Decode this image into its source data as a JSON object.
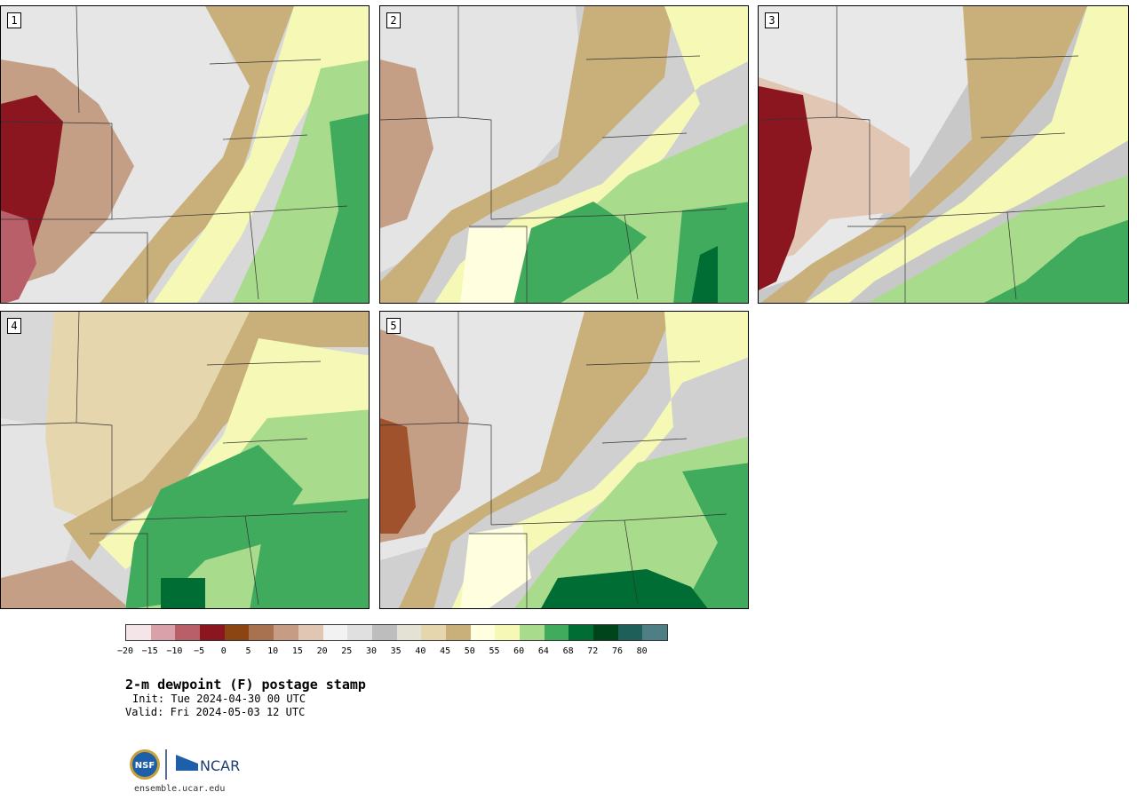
{
  "panels": [
    {
      "label": "1"
    },
    {
      "label": "2"
    },
    {
      "label": "3"
    },
    {
      "label": "4"
    },
    {
      "label": "5"
    }
  ],
  "colorbar": {
    "colors": [
      "#f4e6e8",
      "#d9a2ab",
      "#b85f6a",
      "#8b1620",
      "#8b4513",
      "#a87150",
      "#c79c84",
      "#e2c6b4",
      "#f2f2f2",
      "#e0e0e0",
      "#bdbdbd",
      "#e4e2d5",
      "#e6d6ae",
      "#c9b07a",
      "#ffffe0",
      "#f5f9b5",
      "#a8dc8c",
      "#41ab5d",
      "#006d35",
      "#00441b",
      "#1f5f5a",
      "#4f7f85"
    ],
    "ticks": [
      "−20",
      "−15",
      "−10",
      "−5",
      "0",
      "5",
      "10",
      "15",
      "20",
      "25",
      "30",
      "35",
      "40",
      "45",
      "50",
      "55",
      "60",
      "64",
      "68",
      "72",
      "76",
      "80"
    ]
  },
  "title": "2-m dewpoint (F) postage stamp",
  "init": "Init: Tue 2024-04-30 00 UTC",
  "valid": "Valid: Fri 2024-05-03 12 UTC",
  "logos": {
    "nsf": "NSF",
    "ncar": "NCAR"
  },
  "url": "ensemble.ucar.edu"
}
